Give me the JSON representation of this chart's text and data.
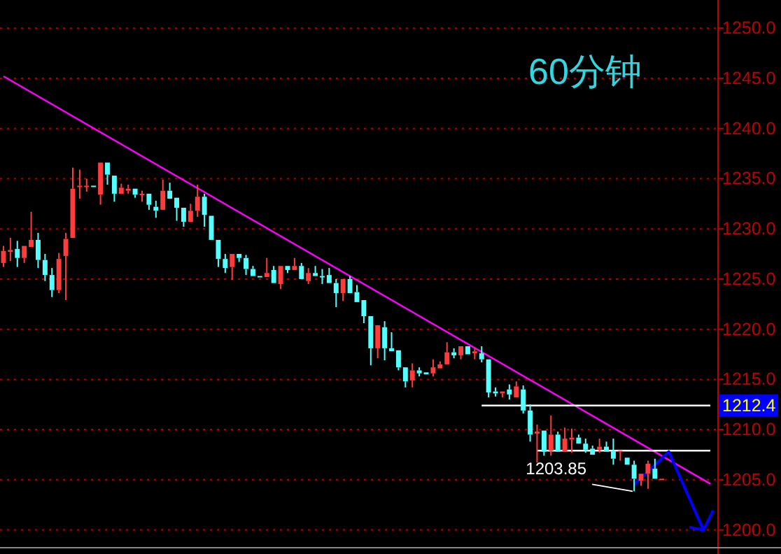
{
  "chart_data": {
    "type": "candlestick",
    "title": "60分钟",
    "categories": [
      null,
      null,
      null,
      null,
      null,
      null,
      null,
      null,
      null,
      null,
      null,
      null,
      null,
      null,
      null,
      null,
      null,
      null,
      null,
      null,
      null,
      null,
      null,
      null,
      null,
      null,
      null,
      null,
      null,
      null,
      null,
      null,
      null,
      null,
      null,
      null,
      null,
      null,
      null,
      null,
      null,
      null,
      null,
      null,
      null,
      null,
      null,
      null,
      null,
      null,
      null,
      null,
      null,
      null,
      null,
      null,
      null,
      null,
      null,
      null,
      null,
      null,
      null,
      null,
      null,
      null,
      null,
      null,
      null,
      null,
      null,
      null,
      null,
      null,
      null,
      null,
      null,
      null,
      null,
      null,
      null,
      null,
      null,
      null,
      null,
      null,
      null,
      null,
      null,
      null,
      null,
      null,
      null,
      null,
      null,
      null,
      null,
      null,
      null,
      null,
      null,
      null,
      null
    ],
    "ohlc": [
      [
        1226.6,
        1228.3,
        1226.2,
        1227.8
      ],
      [
        1227.7,
        1229.1,
        1226.8,
        1227.9
      ],
      [
        1228.0,
        1228.8,
        1226.2,
        1227.1
      ],
      [
        1227.1,
        1228.5,
        1226.6,
        1228.3
      ],
      [
        1228.2,
        1231.7,
        1228.0,
        1228.9
      ],
      [
        1228.9,
        1229.6,
        1226.1,
        1226.9
      ],
      [
        1226.9,
        1227.5,
        1224.8,
        1225.4
      ],
      [
        1225.4,
        1226.1,
        1223.2,
        1223.9
      ],
      [
        1223.9,
        1227.6,
        1223.6,
        1227.0
      ],
      [
        1227.3,
        1229.6,
        1222.9,
        1229.0
      ],
      [
        1229.1,
        1236.1,
        1228.9,
        1234.0
      ],
      [
        1234.2,
        1235.9,
        1233.0,
        1234.3
      ],
      [
        1234.2,
        1235.0,
        1233.7,
        1234.3
      ],
      [
        1234.3,
        1234.4,
        1234.1,
        1234.2
      ],
      [
        1233.4,
        1236.6,
        1232.4,
        1236.6
      ],
      [
        1236.6,
        1236.6,
        1234.4,
        1235.4
      ],
      [
        1235.3,
        1235.3,
        1232.7,
        1233.5
      ],
      [
        1233.5,
        1234.5,
        1233.3,
        1234.1
      ],
      [
        1233.8,
        1234.4,
        1233.5,
        1234.0
      ],
      [
        1234.0,
        1234.2,
        1233.1,
        1233.4
      ],
      [
        1233.4,
        1233.8,
        1232.7,
        1233.5
      ],
      [
        1233.5,
        1233.5,
        1231.9,
        1232.4
      ],
      [
        1232.2,
        1232.8,
        1231.1,
        1231.8
      ],
      [
        1231.9,
        1234.9,
        1231.7,
        1233.8
      ],
      [
        1233.8,
        1234.6,
        1232.8,
        1233.0
      ],
      [
        1233.1,
        1233.3,
        1230.8,
        1232.1
      ],
      [
        1232.1,
        1232.2,
        1230.2,
        1230.7
      ],
      [
        1230.7,
        1232.5,
        1230.5,
        1231.8
      ],
      [
        1231.8,
        1234.4,
        1231.2,
        1233.2
      ],
      [
        1233.2,
        1233.5,
        1230.2,
        1231.4
      ],
      [
        1231.3,
        1231.3,
        1228.7,
        1228.9
      ],
      [
        1228.9,
        1228.9,
        1226.2,
        1227.0
      ],
      [
        1227.0,
        1227.5,
        1225.6,
        1226.1
      ],
      [
        1226.2,
        1227.6,
        1224.9,
        1227.5
      ],
      [
        1227.5,
        1227.7,
        1226.7,
        1227.1
      ],
      [
        1227.1,
        1227.4,
        1225.4,
        1226.0
      ],
      [
        1226.0,
        1226.3,
        1225.1,
        1225.3
      ],
      [
        1225.3,
        1225.3,
        1225.1,
        1225.2
      ],
      [
        1225.2,
        1227.1,
        1225.2,
        1225.6
      ],
      [
        1225.9,
        1226.3,
        1224.5,
        1224.6
      ],
      [
        1224.5,
        1226.4,
        1224.0,
        1226.3
      ],
      [
        1226.3,
        1226.4,
        1225.6,
        1225.9
      ],
      [
        1225.9,
        1227.1,
        1225.8,
        1226.3
      ],
      [
        1226.3,
        1226.6,
        1224.8,
        1225.0
      ],
      [
        1224.8,
        1226.1,
        1224.5,
        1225.6
      ],
      [
        1225.6,
        1226.3,
        1225.1,
        1225.3
      ],
      [
        1225.3,
        1226.0,
        1224.5,
        1225.2
      ],
      [
        1225.4,
        1226.1,
        1224.5,
        1224.6
      ],
      [
        1224.6,
        1225.0,
        1222.2,
        1223.6
      ],
      [
        1223.6,
        1225.2,
        1222.8,
        1225.0
      ],
      [
        1225.0,
        1225.3,
        1223.4,
        1223.6
      ],
      [
        1223.7,
        1224.4,
        1222.6,
        1222.7
      ],
      [
        1222.9,
        1223.1,
        1220.6,
        1221.3
      ],
      [
        1221.3,
        1221.5,
        1216.4,
        1218.1
      ],
      [
        1218.1,
        1220.5,
        1217.1,
        1220.4
      ],
      [
        1220.2,
        1220.8,
        1216.9,
        1218.1
      ],
      [
        1218.1,
        1219.7,
        1217.6,
        1217.8
      ],
      [
        1217.9,
        1217.9,
        1215.9,
        1216.2
      ],
      [
        1216.2,
        1216.4,
        1214.2,
        1214.8
      ],
      [
        1214.9,
        1216.6,
        1214.2,
        1215.9
      ],
      [
        1215.9,
        1216.2,
        1215.3,
        1215.6
      ],
      [
        1215.7,
        1215.8,
        1215.4,
        1215.5
      ],
      [
        1215.6,
        1217.0,
        1215.3,
        1216.2
      ],
      [
        1216.1,
        1216.8,
        1215.9,
        1216.5
      ],
      [
        1216.5,
        1218.7,
        1216.4,
        1217.7
      ],
      [
        1217.7,
        1218.1,
        1217.1,
        1217.4
      ],
      [
        1217.4,
        1218.5,
        1217.0,
        1218.3
      ],
      [
        1218.3,
        1218.5,
        1217.4,
        1217.5
      ],
      [
        1217.6,
        1218.1,
        1217.0,
        1217.8
      ],
      [
        1217.6,
        1218.3,
        1216.7,
        1217.0
      ],
      [
        1217.0,
        1217.0,
        1213.2,
        1213.7
      ],
      [
        1213.8,
        1214.2,
        1213.3,
        1213.6
      ],
      [
        1213.6,
        1214.0,
        1213.2,
        1213.8
      ],
      [
        1214.0,
        1214.5,
        1213.0,
        1213.5
      ],
      [
        1213.2,
        1214.8,
        1213.0,
        1214.3
      ],
      [
        1214.0,
        1214.4,
        1211.6,
        1211.9
      ],
      [
        1211.9,
        1212.5,
        1208.8,
        1209.5
      ],
      [
        1209.6,
        1210.5,
        1206.7,
        1209.8
      ],
      [
        1209.9,
        1210.0,
        1207.4,
        1207.8
      ],
      [
        1207.9,
        1211.4,
        1207.4,
        1209.5
      ],
      [
        1209.5,
        1209.8,
        1207.7,
        1207.8
      ],
      [
        1207.8,
        1210.2,
        1207.7,
        1209.1
      ],
      [
        1209.0,
        1210.1,
        1207.7,
        1209.2
      ],
      [
        1209.2,
        1209.5,
        1208.5,
        1208.6
      ],
      [
        1208.6,
        1209.1,
        1207.7,
        1208.0
      ],
      [
        1208.1,
        1208.4,
        1207.4,
        1207.5
      ],
      [
        1208.0,
        1209.1,
        1207.7,
        1208.3
      ],
      [
        1208.3,
        1208.8,
        1207.7,
        1207.8
      ],
      [
        1207.9,
        1209.1,
        1206.5,
        1207.1
      ],
      [
        1207.8,
        1208.0,
        1206.9,
        1207.9
      ],
      [
        1207.2,
        1207.4,
        1206.4,
        1206.5
      ],
      [
        1206.5,
        1206.9,
        1203.85,
        1205.1
      ],
      [
        1204.9,
        1205.8,
        1204.4,
        1205.6
      ],
      [
        1205.6,
        1206.9,
        1204.1,
        1206.6
      ],
      [
        1206.1,
        1207.1,
        1204.9,
        1205.1
      ],
      [
        1205.0,
        1205.3,
        1204.8,
        1205.1
      ],
      null,
      null,
      null,
      null,
      null,
      null,
      null
    ],
    "series": [
      {
        "type": "line",
        "color": "#ff00ff",
        "values": [
          1245.2,
          null,
          null,
          null,
          null,
          null,
          null,
          null,
          null,
          null,
          null,
          null,
          null,
          null,
          null,
          null,
          null,
          null,
          null,
          null,
          null,
          null,
          null,
          null,
          null,
          null,
          null,
          null,
          null,
          null,
          null,
          null,
          null,
          null,
          null,
          null,
          null,
          null,
          null,
          null,
          null,
          null,
          null,
          null,
          null,
          null,
          null,
          null,
          null,
          null,
          null,
          null,
          null,
          null,
          null,
          null,
          null,
          null,
          null,
          null,
          null,
          null,
          null,
          null,
          null,
          null,
          null,
          null,
          null,
          null,
          null,
          null,
          null,
          null,
          null,
          null,
          null,
          null,
          null,
          null,
          null,
          null,
          null,
          null,
          null,
          null,
          null,
          null,
          null,
          null,
          null,
          null,
          null,
          null,
          null,
          null,
          null,
          null,
          null,
          null,
          null,
          null,
          1204.6
        ]
      },
      {
        "type": "line",
        "color": "#ffffff",
        "values": [
          null,
          null,
          null,
          null,
          null,
          null,
          null,
          null,
          null,
          null,
          null,
          null,
          null,
          null,
          null,
          null,
          null,
          null,
          null,
          null,
          null,
          null,
          null,
          null,
          null,
          null,
          null,
          null,
          null,
          null,
          null,
          null,
          null,
          null,
          null,
          null,
          null,
          null,
          null,
          null,
          null,
          null,
          null,
          null,
          null,
          null,
          null,
          null,
          null,
          null,
          null,
          null,
          null,
          null,
          null,
          null,
          null,
          null,
          null,
          null,
          null,
          null,
          null,
          null,
          null,
          null,
          null,
          null,
          null,
          1212.4,
          null,
          null,
          null,
          null,
          null,
          null,
          null,
          null,
          null,
          null,
          null,
          null,
          null,
          null,
          null,
          null,
          null,
          null,
          null,
          null,
          null,
          null,
          null,
          null,
          null,
          null,
          null,
          null,
          null,
          null,
          null,
          null,
          1212.4
        ]
      },
      {
        "type": "line",
        "color": "#ffffff",
        "values": [
          null,
          null,
          null,
          null,
          null,
          null,
          null,
          null,
          null,
          null,
          null,
          null,
          null,
          null,
          null,
          null,
          null,
          null,
          null,
          null,
          null,
          null,
          null,
          null,
          null,
          null,
          null,
          null,
          null,
          null,
          null,
          null,
          null,
          null,
          null,
          null,
          null,
          null,
          null,
          null,
          null,
          null,
          null,
          null,
          null,
          null,
          null,
          null,
          null,
          null,
          null,
          null,
          null,
          null,
          null,
          null,
          null,
          null,
          null,
          null,
          null,
          null,
          null,
          null,
          null,
          null,
          null,
          null,
          null,
          null,
          null,
          null,
          null,
          null,
          null,
          null,
          null,
          1207.9,
          null,
          null,
          null,
          null,
          null,
          null,
          null,
          null,
          null,
          null,
          null,
          null,
          null,
          null,
          null,
          null,
          null,
          null,
          null,
          null,
          null,
          null,
          null,
          null,
          1207.9
        ]
      },
      {
        "type": "line",
        "color": "#0000ff",
        "values": [
          null,
          null,
          null,
          null,
          null,
          null,
          null,
          null,
          null,
          null,
          null,
          null,
          null,
          null,
          null,
          null,
          null,
          null,
          null,
          null,
          null,
          null,
          null,
          null,
          null,
          null,
          null,
          null,
          null,
          null,
          null,
          null,
          null,
          null,
          null,
          null,
          null,
          null,
          null,
          null,
          null,
          null,
          null,
          null,
          null,
          null,
          null,
          null,
          null,
          null,
          null,
          null,
          null,
          null,
          null,
          null,
          null,
          null,
          null,
          null,
          null,
          null,
          null,
          null,
          null,
          null,
          null,
          null,
          null,
          null,
          null,
          null,
          null,
          null,
          null,
          null,
          null,
          null,
          null,
          null,
          null,
          null,
          null,
          null,
          null,
          null,
          null,
          null,
          null,
          null,
          null,
          1204.5,
          null,
          null,
          null,
          null,
          1207.8,
          null,
          null,
          null,
          null,
          1200.0,
          null
        ]
      }
    ],
    "ylim": [
      1198.3,
      1252.8
    ],
    "yticks": [
      {
        "value": 1200,
        "label": "1200.0"
      },
      {
        "value": 1205,
        "label": "1205.0"
      },
      {
        "value": 1210,
        "label": "1210.0"
      },
      {
        "value": 1215,
        "label": "1215.0"
      },
      {
        "value": 1220,
        "label": "1220.0"
      },
      {
        "value": 1225,
        "label": "1225.0"
      },
      {
        "value": 1230,
        "label": "1230.0"
      },
      {
        "value": 1235,
        "label": "1235.0"
      },
      {
        "value": 1240,
        "label": "1240.0"
      },
      {
        "value": 1245,
        "label": "1245.0"
      },
      {
        "value": 1250,
        "label": "1250.0"
      }
    ],
    "grid": "y",
    "tick_labels": "y",
    "annotations": [
      {
        "text": "1212.4",
        "y": 1212.4
      },
      "1203.85"
    ]
  }
}
